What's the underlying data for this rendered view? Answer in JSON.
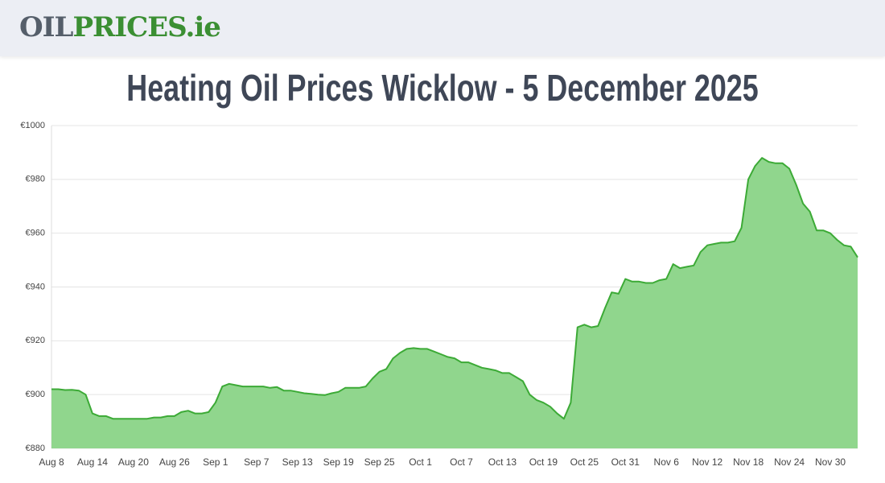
{
  "header": {
    "logo_dark": "OIL",
    "logo_green": "PRICES.ie"
  },
  "chart_data": {
    "type": "area",
    "title": "Heating Oil Prices Wicklow - 5 December 2025",
    "categories": [
      "Aug 8",
      null,
      null,
      null,
      null,
      null,
      "Aug 14",
      null,
      null,
      null,
      null,
      null,
      "Aug 20",
      null,
      null,
      null,
      null,
      null,
      "Aug 26",
      null,
      null,
      null,
      null,
      null,
      "Sep 1",
      null,
      null,
      null,
      null,
      null,
      "Sep 7",
      null,
      null,
      null,
      null,
      null,
      "Sep 13",
      null,
      null,
      null,
      null,
      null,
      "Sep 19",
      null,
      null,
      null,
      null,
      null,
      "Sep 25",
      null,
      null,
      null,
      null,
      null,
      "Oct 1",
      null,
      null,
      null,
      null,
      null,
      "Oct 7",
      null,
      null,
      null,
      null,
      null,
      "Oct 13",
      null,
      null,
      null,
      null,
      null,
      "Oct 19",
      null,
      null,
      null,
      null,
      null,
      "Oct 25",
      null,
      null,
      null,
      null,
      null,
      "Oct 31",
      null,
      null,
      null,
      null,
      null,
      "Nov 6",
      null,
      null,
      null,
      null,
      null,
      "Nov 12",
      null,
      null,
      null,
      null,
      null,
      "Nov 18",
      null,
      null,
      null,
      null,
      null,
      "Nov 24",
      null,
      null,
      null,
      null,
      null,
      "Nov 30",
      null,
      null,
      null,
      null
    ],
    "values": [
      902,
      902,
      901.7,
      901.8,
      901.5,
      900,
      893,
      892,
      892,
      891,
      891,
      891,
      891,
      891,
      891,
      891.5,
      891.5,
      892,
      892,
      893.5,
      894,
      893,
      893,
      893.5,
      897,
      903,
      904,
      903.5,
      903,
      903,
      903,
      903,
      902.5,
      902.8,
      901.5,
      901.5,
      901,
      900.5,
      900.3,
      900,
      899.8,
      900.5,
      901,
      902.5,
      902.5,
      902.5,
      903,
      906,
      908.5,
      909.5,
      913.5,
      915.5,
      917,
      917.3,
      917,
      917,
      916,
      915,
      914,
      913.5,
      912,
      912,
      911,
      910,
      909.5,
      909,
      908,
      908,
      906.5,
      905,
      900,
      898,
      897,
      895.5,
      893,
      891,
      897,
      925,
      926,
      925,
      925.5,
      932,
      938,
      937.5,
      943,
      942,
      942,
      941.5,
      941.5,
      942.5,
      943,
      948.5,
      947,
      947.5,
      948,
      953,
      955.5,
      956,
      956.5,
      956.5,
      957,
      962,
      980,
      985,
      988,
      986.5,
      986,
      986,
      984,
      978,
      971,
      968,
      961,
      961,
      960,
      957.5,
      955.5,
      955,
      951
    ],
    "color": "#3caa36",
    "fill": "#90d68d",
    "ylim": [
      880,
      1000
    ],
    "yticks": [
      {
        "value": 880,
        "label": "€880"
      },
      {
        "value": 900,
        "label": "€900"
      },
      {
        "value": 920,
        "label": "€920"
      },
      {
        "value": 940,
        "label": "€940"
      },
      {
        "value": 960,
        "label": "€960"
      },
      {
        "value": 980,
        "label": "€980"
      },
      {
        "value": 1000,
        "label": "€1000"
      }
    ],
    "grid": true
  }
}
